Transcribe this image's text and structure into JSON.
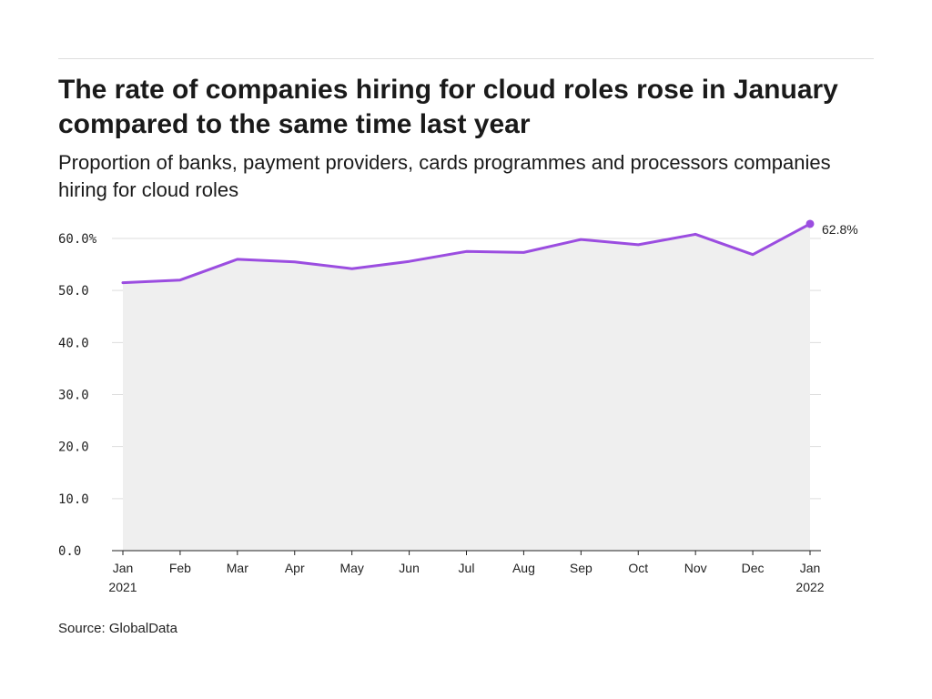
{
  "header": {
    "title": "The rate of companies hiring for cloud roles rose in January compared to the same time last year",
    "subtitle": "Proportion of banks, payment providers, cards programmes and processors companies hiring for cloud roles"
  },
  "footer": {
    "source": "Source: GlobalData"
  },
  "colors": {
    "line": "#9b4de0",
    "area": "#efefef",
    "grid": "#dddddd",
    "axis": "#222222"
  },
  "chart_data": {
    "type": "area",
    "title": "The rate of companies hiring for cloud roles rose in January compared to the same time last year",
    "subtitle": "Proportion of banks, payment providers, cards programmes and processors companies hiring for cloud roles",
    "xlabel": "",
    "ylabel": "",
    "categories": [
      {
        "label": "Jan",
        "sub": "2021"
      },
      {
        "label": "Feb",
        "sub": ""
      },
      {
        "label": "Mar",
        "sub": ""
      },
      {
        "label": "Apr",
        "sub": ""
      },
      {
        "label": "May",
        "sub": ""
      },
      {
        "label": "Jun",
        "sub": ""
      },
      {
        "label": "Jul",
        "sub": ""
      },
      {
        "label": "Aug",
        "sub": ""
      },
      {
        "label": "Sep",
        "sub": ""
      },
      {
        "label": "Oct",
        "sub": ""
      },
      {
        "label": "Nov",
        "sub": ""
      },
      {
        "label": "Dec",
        "sub": ""
      },
      {
        "label": "Jan",
        "sub": "2022"
      }
    ],
    "series": [
      {
        "values": [
          51.5,
          52.0,
          56.0,
          55.5,
          54.2,
          55.6,
          57.5,
          57.3,
          59.8,
          58.8,
          60.8,
          56.9,
          62.8
        ]
      }
    ],
    "end_label": "62.8%",
    "y_ticks": [
      0,
      10,
      20,
      30,
      40,
      50,
      60
    ],
    "y_tick_labels": [
      "0.0",
      "10.0",
      "20.0",
      "30.0",
      "40.0",
      "50.0",
      "60.0%"
    ],
    "ylim": [
      0,
      60
    ],
    "grid": true,
    "legend": "none"
  }
}
